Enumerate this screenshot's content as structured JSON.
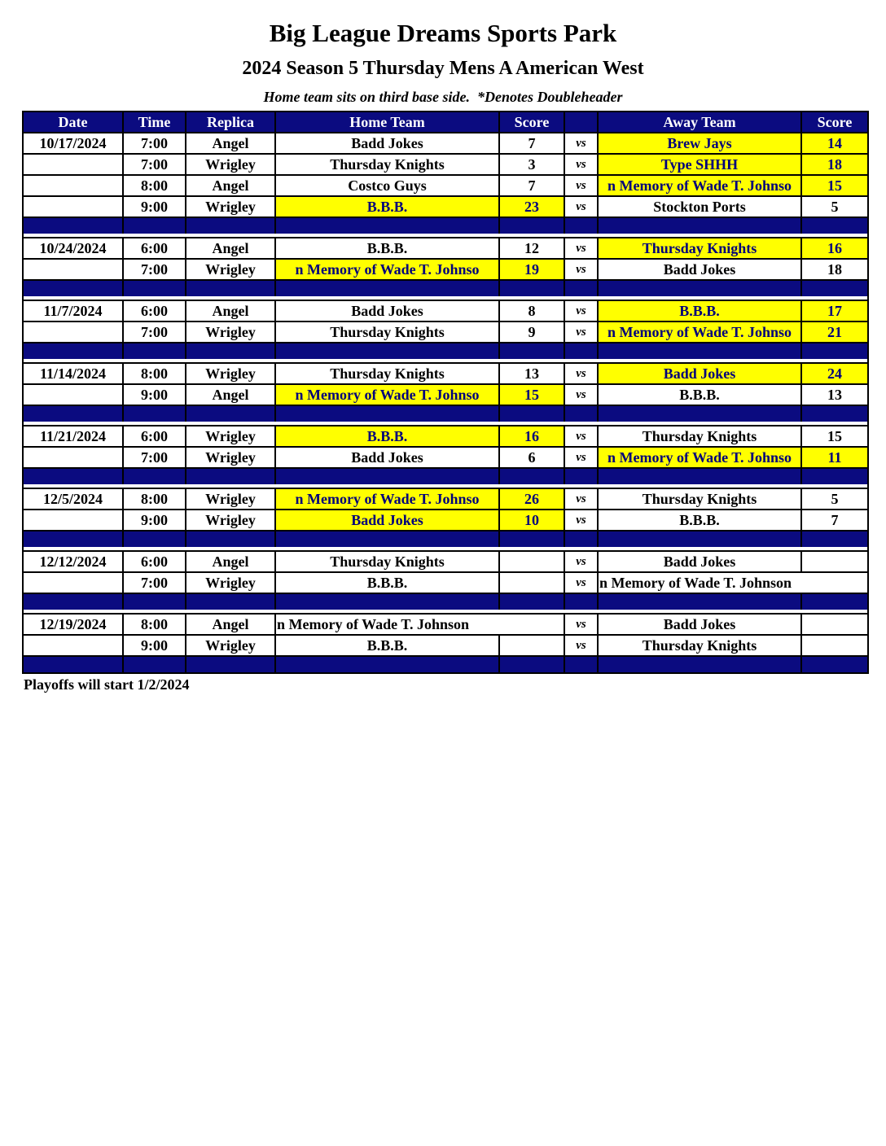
{
  "header": {
    "title": "Big League Dreams Sports Park",
    "subtitle": "2024 Season 5 Thursday Mens A American West",
    "note": "Home team sits on third base side.  *Denotes Doubleheader"
  },
  "footer": {
    "text": "Playoffs will start 1/2/2024"
  },
  "colors": {
    "navy": "#0b0b80",
    "yellow": "#ffff00",
    "highlight_text": "#00007b",
    "header_text": "#ffffff",
    "border": "#000000"
  },
  "table": {
    "headers": [
      "Date",
      "Time",
      "Replica",
      "Home Team",
      "Score",
      "",
      "Away Team",
      "Score"
    ],
    "vs_label": "vs",
    "blocks": [
      {
        "date": "10/17/2024",
        "games": [
          {
            "time": "7:00",
            "replica": "Angel",
            "home": "Badd Jokes",
            "home_score": "7",
            "away": "Brew Jays",
            "away_score": "14",
            "highlight": "away"
          },
          {
            "time": "7:00",
            "replica": "Wrigley",
            "home": "Thursday Knights",
            "home_score": "3",
            "away": "Type SHHH",
            "away_score": "18",
            "highlight": "away"
          },
          {
            "time": "8:00",
            "replica": "Angel",
            "home": "Costco Guys",
            "home_score": "7",
            "away": "n Memory of Wade T. Johnso",
            "away_score": "15",
            "highlight": "away"
          },
          {
            "time": "9:00",
            "replica": "Wrigley",
            "home": "B.B.B.",
            "home_score": "23",
            "away": "Stockton Ports",
            "away_score": "5",
            "highlight": "home"
          }
        ]
      },
      {
        "date": "10/24/2024",
        "games": [
          {
            "time": "6:00",
            "replica": "Angel",
            "home": "B.B.B.",
            "home_score": "12",
            "away": "Thursday Knights",
            "away_score": "16",
            "highlight": "away"
          },
          {
            "time": "7:00",
            "replica": "Wrigley",
            "home": "n Memory of Wade T. Johnso",
            "home_score": "19",
            "away": "Badd Jokes",
            "away_score": "18",
            "highlight": "home"
          }
        ]
      },
      {
        "date": "11/7/2024",
        "games": [
          {
            "time": "6:00",
            "replica": "Angel",
            "home": "Badd Jokes",
            "home_score": "8",
            "away": "B.B.B.",
            "away_score": "17",
            "highlight": "away"
          },
          {
            "time": "7:00",
            "replica": "Wrigley",
            "home": "Thursday Knights",
            "home_score": "9",
            "away": "n Memory of Wade T. Johnso",
            "away_score": "21",
            "highlight": "away"
          }
        ]
      },
      {
        "date": "11/14/2024",
        "games": [
          {
            "time": "8:00",
            "replica": "Wrigley",
            "home": "Thursday Knights",
            "home_score": "13",
            "away": "Badd Jokes",
            "away_score": "24",
            "highlight": "away"
          },
          {
            "time": "9:00",
            "replica": "Angel",
            "home": "n Memory of Wade T. Johnso",
            "home_score": "15",
            "away": "B.B.B.",
            "away_score": "13",
            "highlight": "home"
          }
        ]
      },
      {
        "date": "11/21/2024",
        "games": [
          {
            "time": "6:00",
            "replica": "Wrigley",
            "home": "B.B.B.",
            "home_score": "16",
            "away": "Thursday Knights",
            "away_score": "15",
            "highlight": "home"
          },
          {
            "time": "7:00",
            "replica": "Wrigley",
            "home": "Badd Jokes",
            "home_score": "6",
            "away": "n Memory of Wade T. Johnso",
            "away_score": "11",
            "highlight": "away"
          }
        ]
      },
      {
        "date": "12/5/2024",
        "games": [
          {
            "time": "8:00",
            "replica": "Wrigley",
            "home": "n Memory of Wade T. Johnso",
            "home_score": "26",
            "away": "Thursday Knights",
            "away_score": "5",
            "highlight": "home"
          },
          {
            "time": "9:00",
            "replica": "Wrigley",
            "home": "Badd Jokes",
            "home_score": "10",
            "away": "B.B.B.",
            "away_score": "7",
            "highlight": "home"
          }
        ]
      },
      {
        "date": "12/12/2024",
        "games": [
          {
            "time": "6:00",
            "replica": "Angel",
            "home": "Thursday Knights",
            "home_score": "",
            "away": "Badd Jokes",
            "away_score": "",
            "highlight": null
          },
          {
            "time": "7:00",
            "replica": "Wrigley",
            "home": "B.B.B.",
            "home_score": "",
            "away": "n Memory of Wade T. Johnson",
            "away_score": "",
            "highlight": null,
            "away_merge": true
          }
        ]
      },
      {
        "date": "12/19/2024",
        "games": [
          {
            "time": "8:00",
            "replica": "Angel",
            "home": "n Memory of Wade T. Johnson",
            "home_score": "",
            "away": "Badd Jokes",
            "away_score": "",
            "highlight": null,
            "home_merge": true
          },
          {
            "time": "9:00",
            "replica": "Wrigley",
            "home": "B.B.B.",
            "home_score": "",
            "away": "Thursday Knights",
            "away_score": "",
            "highlight": null
          }
        ]
      }
    ]
  }
}
